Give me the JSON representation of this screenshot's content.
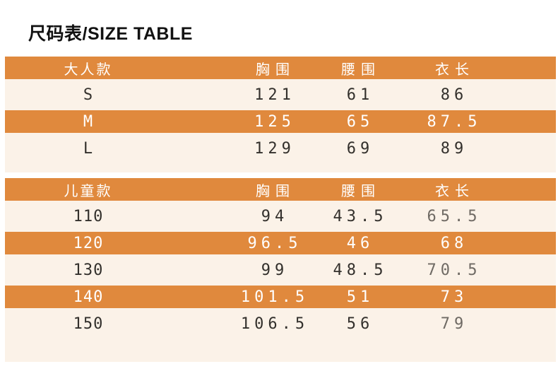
{
  "title": "尺码表/SIZE TABLE",
  "colors": {
    "accent_orange": "#E0893D",
    "row_cream": "#FBF2E8",
    "text_dark": "#33302C",
    "text_muted_gray": "#6F6A64",
    "text_white": "#FFFFFF",
    "title_black": "#121212"
  },
  "chart_data": [
    {
      "type": "table",
      "name": "adult-sizes",
      "columns": [
        "大人款",
        "胸围",
        "腰围",
        "衣长"
      ],
      "rows": [
        [
          "S",
          "121",
          "61",
          "86"
        ],
        [
          "M",
          "125",
          "65",
          "87.5"
        ],
        [
          "L",
          "129",
          "69",
          "89"
        ]
      ],
      "row_styles": [
        "cream",
        "orange",
        "cream"
      ],
      "header_style": "orange"
    },
    {
      "type": "table",
      "name": "kids-sizes",
      "columns": [
        "儿童款",
        "胸围",
        "腰围",
        "衣长"
      ],
      "rows": [
        [
          "110",
          "94",
          "43.5",
          "65.5"
        ],
        [
          "120",
          "96.5",
          "46",
          "68"
        ],
        [
          "130",
          "99",
          "48.5",
          "70.5"
        ],
        [
          "140",
          "101.5",
          "51",
          "73"
        ],
        [
          "150",
          "106.5",
          "56",
          "79"
        ]
      ],
      "row_styles": [
        "cream",
        "orange",
        "cream",
        "orange",
        "cream"
      ],
      "header_style": "orange",
      "note_last_column_muted_on_cream_rows": true
    }
  ]
}
